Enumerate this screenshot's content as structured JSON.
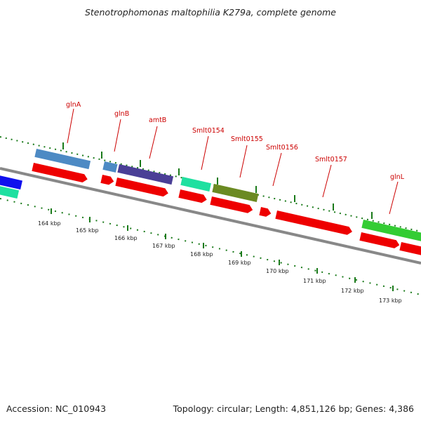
{
  "title": "Stenotrophomonas maltophilia K279a, complete genome",
  "footer": {
    "accession": "Accession: NC_010943",
    "topology": "Topology: circular; Length: 4,851,126 bp; Genes: 4,386"
  },
  "colors": {
    "cds": "#ee0000",
    "backbone": "#888888",
    "tick": "#1a7a1a",
    "label": "#cc0000"
  },
  "scale": {
    "unit": "kbp",
    "labels": [
      "164 kbp",
      "165 kbp",
      "166 kbp",
      "167 kbp",
      "168 kbp",
      "169 kbp",
      "170 kbp",
      "171 kbp",
      "172 kbp",
      "173 kbp"
    ]
  },
  "genes": [
    {
      "name": "glnA",
      "color": "#4d8ac4"
    },
    {
      "name": "glnB",
      "color": "#4d8ac4"
    },
    {
      "name": "amtB",
      "color": "#4a3f96"
    },
    {
      "name": "Smlt0154",
      "color": "#1fe0a0"
    },
    {
      "name": "Smlt0155",
      "color": "#6b8a22"
    },
    {
      "name": "Smlt0156",
      "color": ""
    },
    {
      "name": "Smlt0157",
      "color": ""
    },
    {
      "name": "glnL",
      "color": "#33cc33"
    }
  ]
}
